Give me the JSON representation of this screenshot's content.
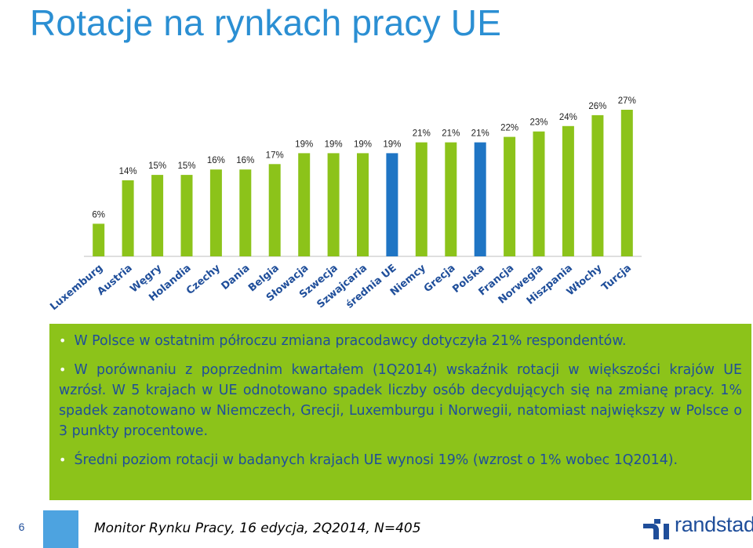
{
  "title": "Rotacje na rynkach pracy UE",
  "chart_data": {
    "type": "bar",
    "categories": [
      "Luxemburg",
      "Austria",
      "Węgry",
      "Holandia",
      "Czechy",
      "Dania",
      "Belgia",
      "Słowacja",
      "Szwecja",
      "Szwajcaria",
      "średnia UE",
      "Niemcy",
      "Grecja",
      "Polska",
      "Francja",
      "Norwegia",
      "Hiszpania",
      "Włochy",
      "Turcja"
    ],
    "values": [
      6,
      14,
      15,
      15,
      16,
      16,
      17,
      19,
      19,
      19,
      19,
      21,
      21,
      21,
      22,
      23,
      24,
      26,
      27
    ],
    "value_labels": [
      "6%",
      "14%",
      "15%",
      "15%",
      "16%",
      "16%",
      "17%",
      "19%",
      "19%",
      "19%",
      "19%",
      "21%",
      "21%",
      "21%",
      "22%",
      "23%",
      "24%",
      "26%",
      "27%"
    ],
    "highlighted": [
      "średnia UE",
      "Polska"
    ],
    "ylim": [
      0,
      28
    ],
    "grid": false,
    "colors": {
      "default": "#8CC31A",
      "highlight": "#1F75C4"
    }
  },
  "callout": {
    "bullets": [
      "W Polsce w ostatnim półroczu zmiana pracodawcy dotyczyła 21% respondentów.",
      "W porównaniu z poprzednim kwartałem (1Q2014) wskaźnik rotacji w większości krajów UE wzrósł. W 5 krajach w UE odnotowano spadek liczby osób decydujących się na zmianę pracy. 1% spadek zanotowano w Niemczech, Grecji, Luxemburgu i Norwegii, natomiast największy w Polsce o 3 punkty procentowe.",
      "Średni poziom rotacji w badanych krajach UE wynosi 19% (wzrost o 1% wobec 1Q2014)."
    ]
  },
  "footer": {
    "page_number": "6",
    "source": "Monitor Rynku Pracy, 16 edycja, 2Q2014, N=405",
    "logo": "randstad"
  }
}
